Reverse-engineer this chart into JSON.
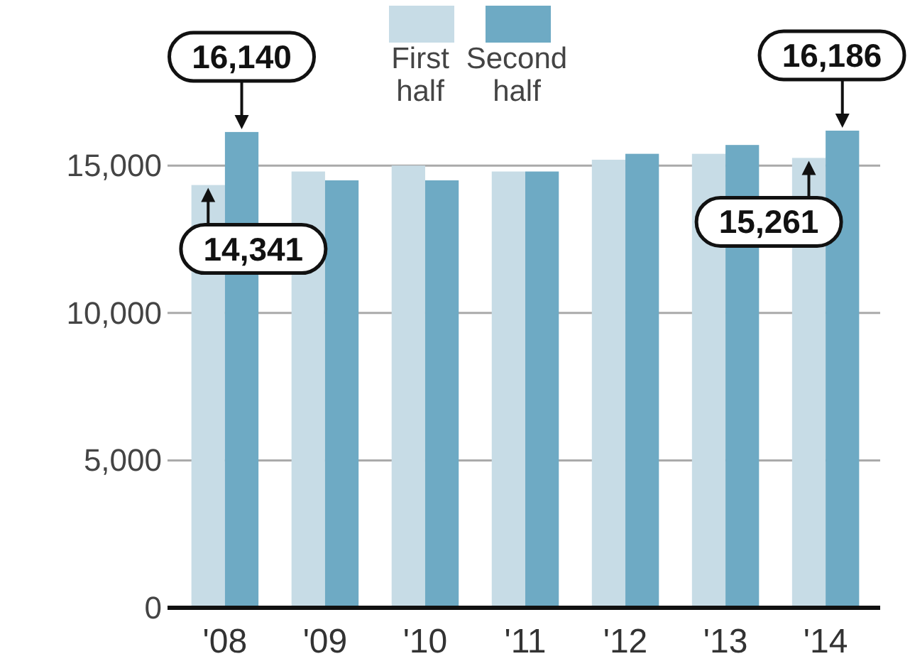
{
  "chart_data": {
    "type": "bar",
    "categories": [
      "'08",
      "'09",
      "'10",
      "'11",
      "'12",
      "'13",
      "'14"
    ],
    "series": [
      {
        "name": "First half",
        "color": "#c7dce6",
        "values": [
          14341,
          14800,
          15000,
          14800,
          15200,
          15400,
          15261
        ],
        "value_labels": [
          "14,341",
          null,
          null,
          null,
          null,
          null,
          "15,261"
        ]
      },
      {
        "name": "Second half",
        "color": "#6eaac4",
        "values": [
          16140,
          14500,
          14500,
          14800,
          15400,
          15700,
          16186
        ],
        "value_labels": [
          "16,140",
          null,
          null,
          null,
          null,
          null,
          "16,186"
        ]
      }
    ],
    "ylim": [
      0,
      16186
    ],
    "yticks": [
      0,
      {
        "value": 5000,
        "label": "5,000"
      },
      {
        "value": 10000,
        "label": "10,000"
      },
      {
        "value": 15000,
        "label": "15,000"
      }
    ],
    "grid": "y",
    "legend": "top"
  }
}
